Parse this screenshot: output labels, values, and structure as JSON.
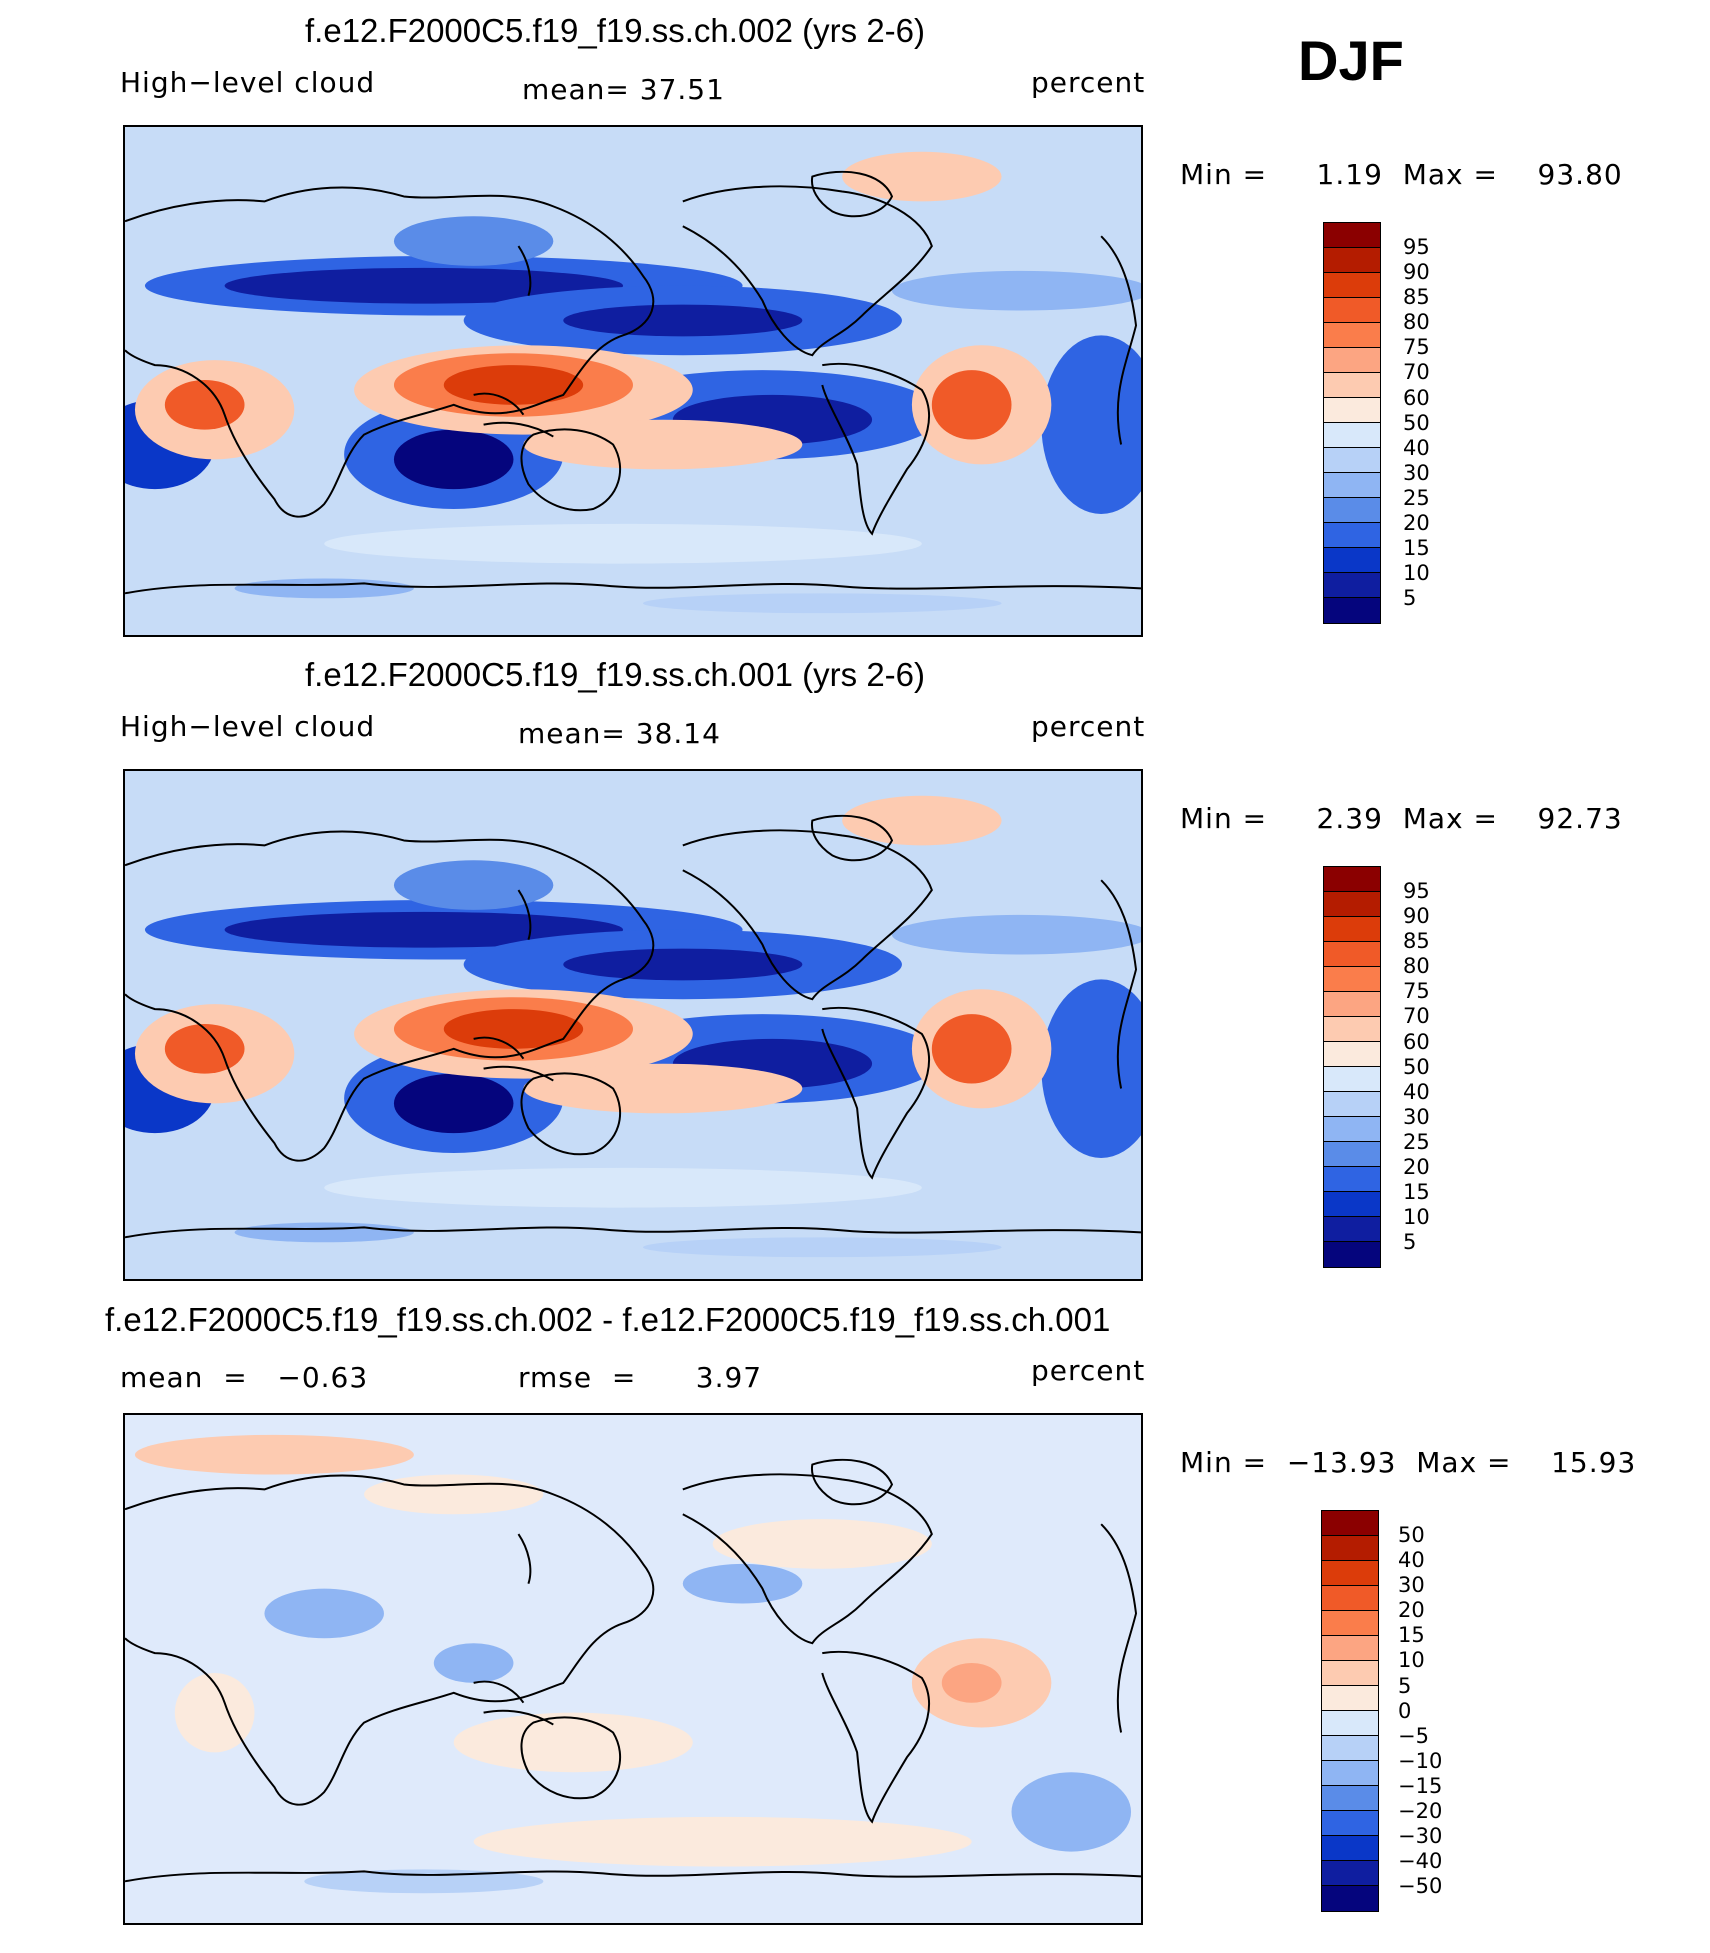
{
  "season": "DJF",
  "panels": [
    {
      "title": "f.e12.F2000C5.f19_f19.ss.ch.002 (yrs 2-6)",
      "left_label": "High−level  cloud",
      "center_label": "mean=   37.51",
      "right_label": "percent",
      "minmax": "Min =     1.19  Max =    93.80",
      "colorbar_labels": [
        "95",
        "90",
        "85",
        "80",
        "75",
        "70",
        "60",
        "50",
        "40",
        "30",
        "25",
        "20",
        "15",
        "10",
        "5"
      ]
    },
    {
      "title": "f.e12.F2000C5.f19_f19.ss.ch.001 (yrs 2-6)",
      "left_label": "High−level  cloud",
      "center_label": "mean=   38.14",
      "right_label": "percent",
      "minmax": "Min =     2.39  Max =    92.73",
      "colorbar_labels": [
        "95",
        "90",
        "85",
        "80",
        "75",
        "70",
        "60",
        "50",
        "40",
        "30",
        "25",
        "20",
        "15",
        "10",
        "5"
      ]
    },
    {
      "title": "f.e12.F2000C5.f19_f19.ss.ch.002 - f.e12.F2000C5.f19_f19.ss.ch.001",
      "left_label": "mean  =   −0.63",
      "center_label": "rmse  =      3.97",
      "right_label": "percent",
      "minmax": "Min =  −13.93  Max =    15.93",
      "colorbar_labels": [
        "50",
        "40",
        "30",
        "20",
        "15",
        "10",
        "5",
        "0",
        "−5",
        "−10",
        "−15",
        "−20",
        "−30",
        "−40",
        "−50"
      ]
    }
  ],
  "colors": {
    "colorbar": [
      "#8b0000",
      "#b41c00",
      "#dc3c0a",
      "#f05a28",
      "#fa7d4b",
      "#fca582",
      "#fdcbb1",
      "#fbeadd",
      "#d8e8fa",
      "#b7d1f7",
      "#8fb5f3",
      "#5a8ce8",
      "#2f64e3",
      "#0a37c8",
      "#0f1ea0",
      "#05057d"
    ],
    "land_outline": "#000000"
  }
}
